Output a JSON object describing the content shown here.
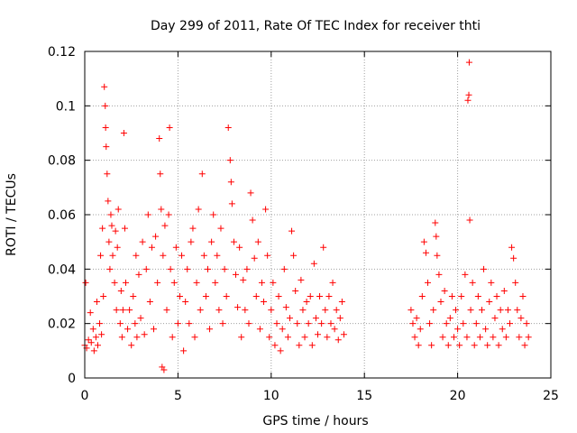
{
  "chart_data": {
    "type": "scatter",
    "title": "Day 299 of 2011, Rate Of TEC Index for receiver thti",
    "xlabel": "GPS time / hours",
    "ylabel": "ROTI / TECUs",
    "xlim": [
      0,
      25
    ],
    "ylim": [
      0,
      0.12
    ],
    "xticks": [
      0,
      5,
      10,
      15,
      20,
      25
    ],
    "xtick_labels": [
      "0",
      "5",
      "10",
      "15",
      "20",
      "25"
    ],
    "yticks": [
      0,
      0.02,
      0.04,
      0.06,
      0.08,
      0.1,
      0.12
    ],
    "ytick_labels": [
      "0",
      "0.02",
      "0.04",
      "0.06",
      "0.08",
      "0.1",
      "0.12"
    ],
    "grid": true,
    "marker": "plus",
    "color": "#ff0000",
    "series": [
      {
        "points": [
          [
            0.0,
            0.012
          ],
          [
            0.05,
            0.035
          ],
          [
            0.1,
            0.011
          ],
          [
            0.2,
            0.014
          ],
          [
            0.3,
            0.024
          ],
          [
            0.35,
            0.013
          ],
          [
            0.45,
            0.018
          ],
          [
            0.5,
            0.01
          ],
          [
            0.6,
            0.015
          ],
          [
            0.65,
            0.028
          ],
          [
            0.7,
            0.012
          ],
          [
            0.8,
            0.02
          ],
          [
            0.85,
            0.045
          ],
          [
            0.9,
            0.016
          ],
          [
            0.95,
            0.055
          ],
          [
            1.0,
            0.03
          ],
          [
            1.05,
            0.107
          ],
          [
            1.1,
            0.1
          ],
          [
            1.12,
            0.092
          ],
          [
            1.15,
            0.085
          ],
          [
            1.2,
            0.075
          ],
          [
            1.25,
            0.065
          ],
          [
            1.3,
            0.05
          ],
          [
            1.35,
            0.04
          ],
          [
            1.4,
            0.06
          ],
          [
            1.45,
            0.056
          ],
          [
            1.5,
            0.045
          ],
          [
            1.6,
            0.035
          ],
          [
            1.65,
            0.054
          ],
          [
            1.7,
            0.025
          ],
          [
            1.75,
            0.048
          ],
          [
            1.8,
            0.062
          ],
          [
            1.9,
            0.02
          ],
          [
            1.95,
            0.032
          ],
          [
            2.0,
            0.015
          ],
          [
            2.05,
            0.025
          ],
          [
            2.1,
            0.09
          ],
          [
            2.15,
            0.055
          ],
          [
            2.2,
            0.035
          ],
          [
            2.3,
            0.018
          ],
          [
            2.4,
            0.025
          ],
          [
            2.5,
            0.012
          ],
          [
            2.6,
            0.03
          ],
          [
            2.7,
            0.02
          ],
          [
            2.75,
            0.045
          ],
          [
            2.8,
            0.015
          ],
          [
            2.9,
            0.038
          ],
          [
            3.0,
            0.022
          ],
          [
            3.1,
            0.05
          ],
          [
            3.2,
            0.016
          ],
          [
            3.3,
            0.04
          ],
          [
            3.4,
            0.06
          ],
          [
            3.5,
            0.028
          ],
          [
            3.6,
            0.048
          ],
          [
            3.7,
            0.018
          ],
          [
            3.8,
            0.052
          ],
          [
            3.9,
            0.035
          ],
          [
            4.0,
            0.088
          ],
          [
            4.05,
            0.075
          ],
          [
            4.1,
            0.062
          ],
          [
            4.15,
            0.004
          ],
          [
            4.2,
            0.045
          ],
          [
            4.25,
            0.003
          ],
          [
            4.3,
            0.056
          ],
          [
            4.4,
            0.025
          ],
          [
            4.5,
            0.06
          ],
          [
            4.55,
            0.092
          ],
          [
            4.6,
            0.04
          ],
          [
            4.7,
            0.015
          ],
          [
            4.8,
            0.035
          ],
          [
            4.9,
            0.048
          ],
          [
            5.0,
            0.02
          ],
          [
            5.1,
            0.03
          ],
          [
            5.2,
            0.045
          ],
          [
            5.3,
            0.01
          ],
          [
            5.4,
            0.028
          ],
          [
            5.5,
            0.04
          ],
          [
            5.6,
            0.02
          ],
          [
            5.7,
            0.05
          ],
          [
            5.8,
            0.055
          ],
          [
            5.9,
            0.015
          ],
          [
            6.0,
            0.035
          ],
          [
            6.1,
            0.062
          ],
          [
            6.2,
            0.025
          ],
          [
            6.3,
            0.075
          ],
          [
            6.4,
            0.045
          ],
          [
            6.5,
            0.03
          ],
          [
            6.6,
            0.04
          ],
          [
            6.7,
            0.018
          ],
          [
            6.8,
            0.05
          ],
          [
            6.9,
            0.06
          ],
          [
            7.0,
            0.035
          ],
          [
            7.1,
            0.045
          ],
          [
            7.2,
            0.025
          ],
          [
            7.3,
            0.055
          ],
          [
            7.4,
            0.02
          ],
          [
            7.5,
            0.04
          ],
          [
            7.6,
            0.03
          ],
          [
            7.7,
            0.092
          ],
          [
            7.8,
            0.08
          ],
          [
            7.85,
            0.072
          ],
          [
            7.9,
            0.064
          ],
          [
            8.0,
            0.05
          ],
          [
            8.1,
            0.038
          ],
          [
            8.2,
            0.026
          ],
          [
            8.3,
            0.048
          ],
          [
            8.4,
            0.015
          ],
          [
            8.5,
            0.036
          ],
          [
            8.6,
            0.025
          ],
          [
            8.7,
            0.04
          ],
          [
            8.8,
            0.02
          ],
          [
            8.9,
            0.068
          ],
          [
            9.0,
            0.058
          ],
          [
            9.1,
            0.044
          ],
          [
            9.2,
            0.03
          ],
          [
            9.3,
            0.05
          ],
          [
            9.4,
            0.018
          ],
          [
            9.5,
            0.035
          ],
          [
            9.6,
            0.028
          ],
          [
            9.7,
            0.062
          ],
          [
            9.8,
            0.045
          ],
          [
            9.9,
            0.015
          ],
          [
            10.0,
            0.025
          ],
          [
            10.1,
            0.035
          ],
          [
            10.2,
            0.012
          ],
          [
            10.3,
            0.02
          ],
          [
            10.4,
            0.03
          ],
          [
            10.5,
            0.01
          ],
          [
            10.6,
            0.018
          ],
          [
            10.7,
            0.04
          ],
          [
            10.8,
            0.026
          ],
          [
            10.9,
            0.015
          ],
          [
            11.0,
            0.022
          ],
          [
            11.1,
            0.054
          ],
          [
            11.2,
            0.045
          ],
          [
            11.3,
            0.032
          ],
          [
            11.4,
            0.02
          ],
          [
            11.5,
            0.012
          ],
          [
            11.6,
            0.036
          ],
          [
            11.7,
            0.025
          ],
          [
            11.8,
            0.015
          ],
          [
            11.9,
            0.028
          ],
          [
            12.0,
            0.02
          ],
          [
            12.1,
            0.03
          ],
          [
            12.2,
            0.012
          ],
          [
            12.3,
            0.042
          ],
          [
            12.4,
            0.022
          ],
          [
            12.5,
            0.016
          ],
          [
            12.6,
            0.03
          ],
          [
            12.7,
            0.02
          ],
          [
            12.8,
            0.048
          ],
          [
            12.9,
            0.025
          ],
          [
            13.0,
            0.015
          ],
          [
            13.1,
            0.03
          ],
          [
            13.2,
            0.02
          ],
          [
            13.3,
            0.035
          ],
          [
            13.4,
            0.018
          ],
          [
            13.5,
            0.025
          ],
          [
            13.6,
            0.014
          ],
          [
            13.7,
            0.022
          ],
          [
            13.8,
            0.028
          ],
          [
            13.9,
            0.016
          ],
          [
            17.5,
            0.025
          ],
          [
            17.6,
            0.02
          ],
          [
            17.7,
            0.015
          ],
          [
            17.8,
            0.022
          ],
          [
            17.9,
            0.012
          ],
          [
            18.0,
            0.018
          ],
          [
            18.1,
            0.03
          ],
          [
            18.2,
            0.05
          ],
          [
            18.3,
            0.046
          ],
          [
            18.4,
            0.035
          ],
          [
            18.5,
            0.02
          ],
          [
            18.6,
            0.012
          ],
          [
            18.7,
            0.025
          ],
          [
            18.8,
            0.057
          ],
          [
            18.85,
            0.052
          ],
          [
            18.9,
            0.045
          ],
          [
            19.0,
            0.038
          ],
          [
            19.1,
            0.028
          ],
          [
            19.2,
            0.015
          ],
          [
            19.3,
            0.032
          ],
          [
            19.4,
            0.02
          ],
          [
            19.5,
            0.012
          ],
          [
            19.6,
            0.022
          ],
          [
            19.7,
            0.03
          ],
          [
            19.8,
            0.015
          ],
          [
            19.9,
            0.025
          ],
          [
            20.0,
            0.018
          ],
          [
            20.1,
            0.012
          ],
          [
            20.2,
            0.03
          ],
          [
            20.3,
            0.02
          ],
          [
            20.4,
            0.038
          ],
          [
            20.5,
            0.015
          ],
          [
            20.55,
            0.102
          ],
          [
            20.6,
            0.104
          ],
          [
            20.62,
            0.116
          ],
          [
            20.65,
            0.058
          ],
          [
            20.7,
            0.025
          ],
          [
            20.8,
            0.035
          ],
          [
            20.9,
            0.012
          ],
          [
            21.0,
            0.02
          ],
          [
            21.1,
            0.03
          ],
          [
            21.2,
            0.015
          ],
          [
            21.3,
            0.025
          ],
          [
            21.4,
            0.04
          ],
          [
            21.5,
            0.018
          ],
          [
            21.6,
            0.012
          ],
          [
            21.7,
            0.028
          ],
          [
            21.8,
            0.035
          ],
          [
            21.9,
            0.015
          ],
          [
            22.0,
            0.022
          ],
          [
            22.1,
            0.03
          ],
          [
            22.2,
            0.012
          ],
          [
            22.3,
            0.025
          ],
          [
            22.4,
            0.018
          ],
          [
            22.5,
            0.032
          ],
          [
            22.6,
            0.015
          ],
          [
            22.7,
            0.025
          ],
          [
            22.8,
            0.02
          ],
          [
            22.9,
            0.048
          ],
          [
            23.0,
            0.044
          ],
          [
            23.1,
            0.035
          ],
          [
            23.2,
            0.025
          ],
          [
            23.3,
            0.015
          ],
          [
            23.4,
            0.022
          ],
          [
            23.5,
            0.03
          ],
          [
            23.6,
            0.012
          ],
          [
            23.7,
            0.02
          ],
          [
            23.8,
            0.015
          ]
        ]
      }
    ]
  }
}
